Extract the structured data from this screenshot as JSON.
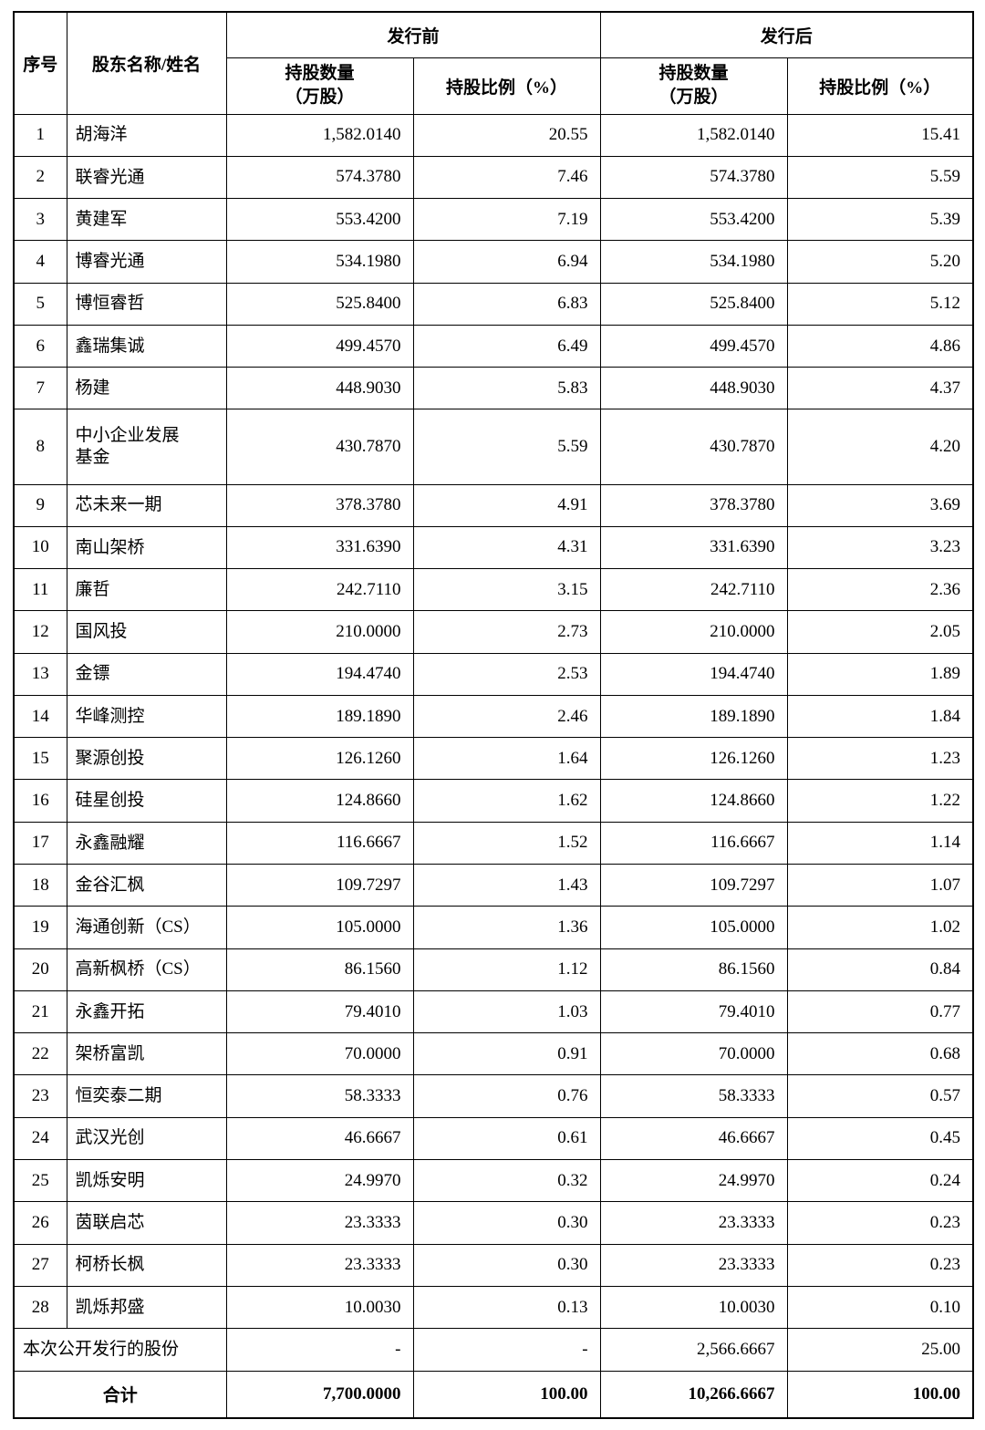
{
  "table": {
    "header": {
      "col_index": "序号",
      "col_name": "股东名称/姓名",
      "group_pre": "发行前",
      "group_post": "发行后",
      "col_shares_line1": "持股数量",
      "col_shares_line2": "（万股）",
      "col_pct": "持股比例（%）"
    },
    "rows": [
      {
        "idx": "1",
        "name": "胡海洋",
        "pre_shares": "1,582.0140",
        "pre_pct": "20.55",
        "post_shares": "1,582.0140",
        "post_pct": "15.41"
      },
      {
        "idx": "2",
        "name": "联睿光通",
        "pre_shares": "574.3780",
        "pre_pct": "7.46",
        "post_shares": "574.3780",
        "post_pct": "5.59"
      },
      {
        "idx": "3",
        "name": "黄建军",
        "pre_shares": "553.4200",
        "pre_pct": "7.19",
        "post_shares": "553.4200",
        "post_pct": "5.39"
      },
      {
        "idx": "4",
        "name": "博睿光通",
        "pre_shares": "534.1980",
        "pre_pct": "6.94",
        "post_shares": "534.1980",
        "post_pct": "5.20"
      },
      {
        "idx": "5",
        "name": "博恒睿哲",
        "pre_shares": "525.8400",
        "pre_pct": "6.83",
        "post_shares": "525.8400",
        "post_pct": "5.12"
      },
      {
        "idx": "6",
        "name": "鑫瑞集诚",
        "pre_shares": "499.4570",
        "pre_pct": "6.49",
        "post_shares": "499.4570",
        "post_pct": "4.86"
      },
      {
        "idx": "7",
        "name": "杨建",
        "pre_shares": "448.9030",
        "pre_pct": "5.83",
        "post_shares": "448.9030",
        "post_pct": "4.37"
      },
      {
        "idx": "8",
        "name": "中小企业发展\n基金",
        "pre_shares": "430.7870",
        "pre_pct": "5.59",
        "post_shares": "430.7870",
        "post_pct": "4.20"
      },
      {
        "idx": "9",
        "name": "芯未来一期",
        "pre_shares": "378.3780",
        "pre_pct": "4.91",
        "post_shares": "378.3780",
        "post_pct": "3.69"
      },
      {
        "idx": "10",
        "name": "南山架桥",
        "pre_shares": "331.6390",
        "pre_pct": "4.31",
        "post_shares": "331.6390",
        "post_pct": "3.23"
      },
      {
        "idx": "11",
        "name": "廉哲",
        "pre_shares": "242.7110",
        "pre_pct": "3.15",
        "post_shares": "242.7110",
        "post_pct": "2.36"
      },
      {
        "idx": "12",
        "name": "国风投",
        "pre_shares": "210.0000",
        "pre_pct": "2.73",
        "post_shares": "210.0000",
        "post_pct": "2.05"
      },
      {
        "idx": "13",
        "name": "金镖",
        "pre_shares": "194.4740",
        "pre_pct": "2.53",
        "post_shares": "194.4740",
        "post_pct": "1.89"
      },
      {
        "idx": "14",
        "name": "华峰测控",
        "pre_shares": "189.1890",
        "pre_pct": "2.46",
        "post_shares": "189.1890",
        "post_pct": "1.84"
      },
      {
        "idx": "15",
        "name": "聚源创投",
        "pre_shares": "126.1260",
        "pre_pct": "1.64",
        "post_shares": "126.1260",
        "post_pct": "1.23"
      },
      {
        "idx": "16",
        "name": "硅星创投",
        "pre_shares": "124.8660",
        "pre_pct": "1.62",
        "post_shares": "124.8660",
        "post_pct": "1.22"
      },
      {
        "idx": "17",
        "name": "永鑫融耀",
        "pre_shares": "116.6667",
        "pre_pct": "1.52",
        "post_shares": "116.6667",
        "post_pct": "1.14"
      },
      {
        "idx": "18",
        "name": "金谷汇枫",
        "pre_shares": "109.7297",
        "pre_pct": "1.43",
        "post_shares": "109.7297",
        "post_pct": "1.07"
      },
      {
        "idx": "19",
        "name": "海通创新（CS）",
        "pre_shares": "105.0000",
        "pre_pct": "1.36",
        "post_shares": "105.0000",
        "post_pct": "1.02"
      },
      {
        "idx": "20",
        "name": "高新枫桥（CS）",
        "pre_shares": "86.1560",
        "pre_pct": "1.12",
        "post_shares": "86.1560",
        "post_pct": "0.84"
      },
      {
        "idx": "21",
        "name": "永鑫开拓",
        "pre_shares": "79.4010",
        "pre_pct": "1.03",
        "post_shares": "79.4010",
        "post_pct": "0.77"
      },
      {
        "idx": "22",
        "name": "架桥富凯",
        "pre_shares": "70.0000",
        "pre_pct": "0.91",
        "post_shares": "70.0000",
        "post_pct": "0.68"
      },
      {
        "idx": "23",
        "name": "恒奕泰二期",
        "pre_shares": "58.3333",
        "pre_pct": "0.76",
        "post_shares": "58.3333",
        "post_pct": "0.57"
      },
      {
        "idx": "24",
        "name": "武汉光创",
        "pre_shares": "46.6667",
        "pre_pct": "0.61",
        "post_shares": "46.6667",
        "post_pct": "0.45"
      },
      {
        "idx": "25",
        "name": "凯烁安明",
        "pre_shares": "24.9970",
        "pre_pct": "0.32",
        "post_shares": "24.9970",
        "post_pct": "0.24"
      },
      {
        "idx": "26",
        "name": "茵联启芯",
        "pre_shares": "23.3333",
        "pre_pct": "0.30",
        "post_shares": "23.3333",
        "post_pct": "0.23"
      },
      {
        "idx": "27",
        "name": "柯桥长枫",
        "pre_shares": "23.3333",
        "pre_pct": "0.30",
        "post_shares": "23.3333",
        "post_pct": "0.23"
      },
      {
        "idx": "28",
        "name": "凯烁邦盛",
        "pre_shares": "10.0030",
        "pre_pct": "0.13",
        "post_shares": "10.0030",
        "post_pct": "0.10"
      }
    ],
    "offering_row": {
      "label": "本次公开发行的股份",
      "pre_shares": "-",
      "pre_pct": "-",
      "post_shares": "2,566.6667",
      "post_pct": "25.00"
    },
    "total_row": {
      "label": "合计",
      "pre_shares": "7,700.0000",
      "pre_pct": "100.00",
      "post_shares": "10,266.6667",
      "post_pct": "100.00"
    }
  }
}
